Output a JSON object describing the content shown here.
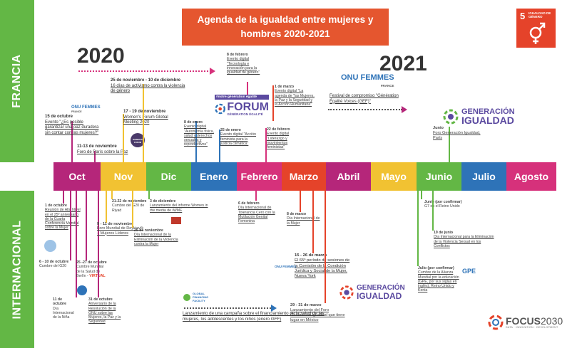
{
  "title": "Agenda de la igualdad entre mujeres y hombres 2020-2021",
  "year_2020": "2020",
  "year_2021": "2021",
  "side_top": "FRANCIA",
  "side_bottom": "INTERNACIONAL",
  "sdg": {
    "number": "5",
    "label": "IGUALDAD DE GÉNERO",
    "color": "#e5432a"
  },
  "months": [
    {
      "label": "Oct",
      "color": "#b5267a"
    },
    {
      "label": "Nov",
      "color": "#f1c232"
    },
    {
      "label": "Dic",
      "color": "#63b745"
    },
    {
      "label": "Enero",
      "color": "#2e73b8"
    },
    {
      "label": "Febrero",
      "color": "#d6317b"
    },
    {
      "label": "Marzo",
      "color": "#e5432a"
    },
    {
      "label": "Abril",
      "color": "#b5267a"
    },
    {
      "label": "Mayo",
      "color": "#f1c232"
    },
    {
      "label": "Junio",
      "color": "#63b745"
    },
    {
      "label": "Julio",
      "color": "#2e73b8"
    },
    {
      "label": "Agosto",
      "color": "#d6317b"
    }
  ],
  "logos": {
    "onu_femmes": "ONU FEMMES",
    "onu_france": "FRANCE",
    "forum_tag": "#notre génération égalité",
    "forum": "FORUM",
    "forum_sub": "GÉNÉRATION ÉGALITÉ",
    "gen_igualdad_1": "GENERACIÓN",
    "gen_igualdad_2": "IGUALDAD",
    "gpe": "GPE",
    "global_financing": "GLOBAL FINANCING FACILITY",
    "focus": "FOCUS",
    "focus_year": "2030",
    "focus_sub": "DATA · INNOVATION · DEVELOPMENT",
    "womens_forum": "WOMEN'S FORUM"
  },
  "france_events": {
    "oct15": {
      "date": "15 de octubre",
      "text": "Evento \"¿Es posible garantizar una paz duradera sin contar con las mujeres?\""
    },
    "nov11": {
      "date": "11-13 de noviembre",
      "text": "Foro de París sobre la Paz"
    },
    "nov17": {
      "date": "17 - 19 de noviembre",
      "text": "Women's Forum Global Meeting 2020"
    },
    "nov25": {
      "date": "25 de noviembre - 10 de diciembre",
      "text": "16 días de activismo contra la violencia de género"
    },
    "jan8": {
      "date": "8 de enero",
      "text": "Evento digital \"Autonomía física, salud y derechos sexuales y reproductivos\""
    },
    "jan25": {
      "date": "25 de enero",
      "text": "Evento digital \"Acción feminista para la justicia climática\""
    },
    "feb8": {
      "date": "8 de febrero",
      "text": "Evento digital \"Tecnología e innovación para la igualdad de género\""
    },
    "feb22": {
      "date": "22 de febrero",
      "text": "Evento digital \"Liderazgo y movimientos feministas\""
    },
    "mar1": {
      "date": "1 de marzo",
      "text": "Evento digital \"La agenda de \"las Mujeres, la Paz y la Seguridad y la Acción Humanitaria\""
    },
    "festival": {
      "text": "Festival de compromiso \"Génération Égalité Voices (GEF)\""
    },
    "jun": {
      "date": "Junio",
      "text": "Foro Generación Igualdad, París"
    }
  },
  "intl_events": {
    "oct1": {
      "date": "1 de octubre",
      "text": "Reunión de Alto Nivel en el 25º aniversario de la Cuarta Conferencia Mundial sobre la Mujer"
    },
    "oct6": {
      "date": "6 - 10 de octubre",
      "text": "Cumbre del G20"
    },
    "oct11": {
      "date": "11 de octubre",
      "text": "Día Internacional de la Niña"
    },
    "oct25": {
      "date": "25 -27 de octubre",
      "text": "Cumbre Mundial de la Salud de Berlín -",
      "virtual": "VIRTUAL"
    },
    "oct31": {
      "date": "31 de octubre",
      "text": "Aniversario de la Resolución de la ONU sobre las Mujeres, la Paz y la Seguridad"
    },
    "nov9": {
      "date": "9 - 11 de noviembre",
      "text": "Foro Mundial de Reykjavík – Mujeres Líderes"
    },
    "nov21": {
      "date": "21-22 de noviembre",
      "text": "Cumbre del G20 de Riyad"
    },
    "nov25": {
      "date": "25 de noviembre",
      "text": "Día Internacional de la Eliminación de la Violencia contra la Mujer"
    },
    "dec3": {
      "date": "3 de diciembre",
      "text": "Lanzamiento del informe Women in the media de IWMF"
    },
    "feb6": {
      "date": "6 de febrero",
      "text": "Día Internacional de Tolerancia Cero con la Mutilación Genital Femenina"
    },
    "mar8": {
      "date": "8 de marzo",
      "text": "Día Internacional de la Mujer"
    },
    "mar15": {
      "date": "15 - 26 de marzo",
      "text": "El 65º período de sesiones de la Comisión de la Condición Jurídica y Social de la Mujer, Nueva York"
    },
    "mar29": {
      "date": "29 - 31 de marzo",
      "text": "Lanzamiento del Foro Generación Igualdad que tiene lugar en México"
    },
    "gff": {
      "text": "Lanzamiento de una campaña sobre el financiamiento de la salud de las mujeres, los adolescentes y los niños (enero GFF)"
    },
    "jun_g7": {
      "date": "Junio (por confirmar)",
      "text": "G7 en el Reino Unido"
    },
    "jun19": {
      "date": "19 de junio",
      "text": "Día Internacional para la Eliminación de la Violencia Sexual en los Conflictos"
    },
    "gpe_event": {
      "date": "Julio (por confirmar)",
      "text": "Cumbre de la Alianza Mundial por la educación (GPE, por sus siglas en inglés), Reino Unido y Kenia"
    }
  }
}
